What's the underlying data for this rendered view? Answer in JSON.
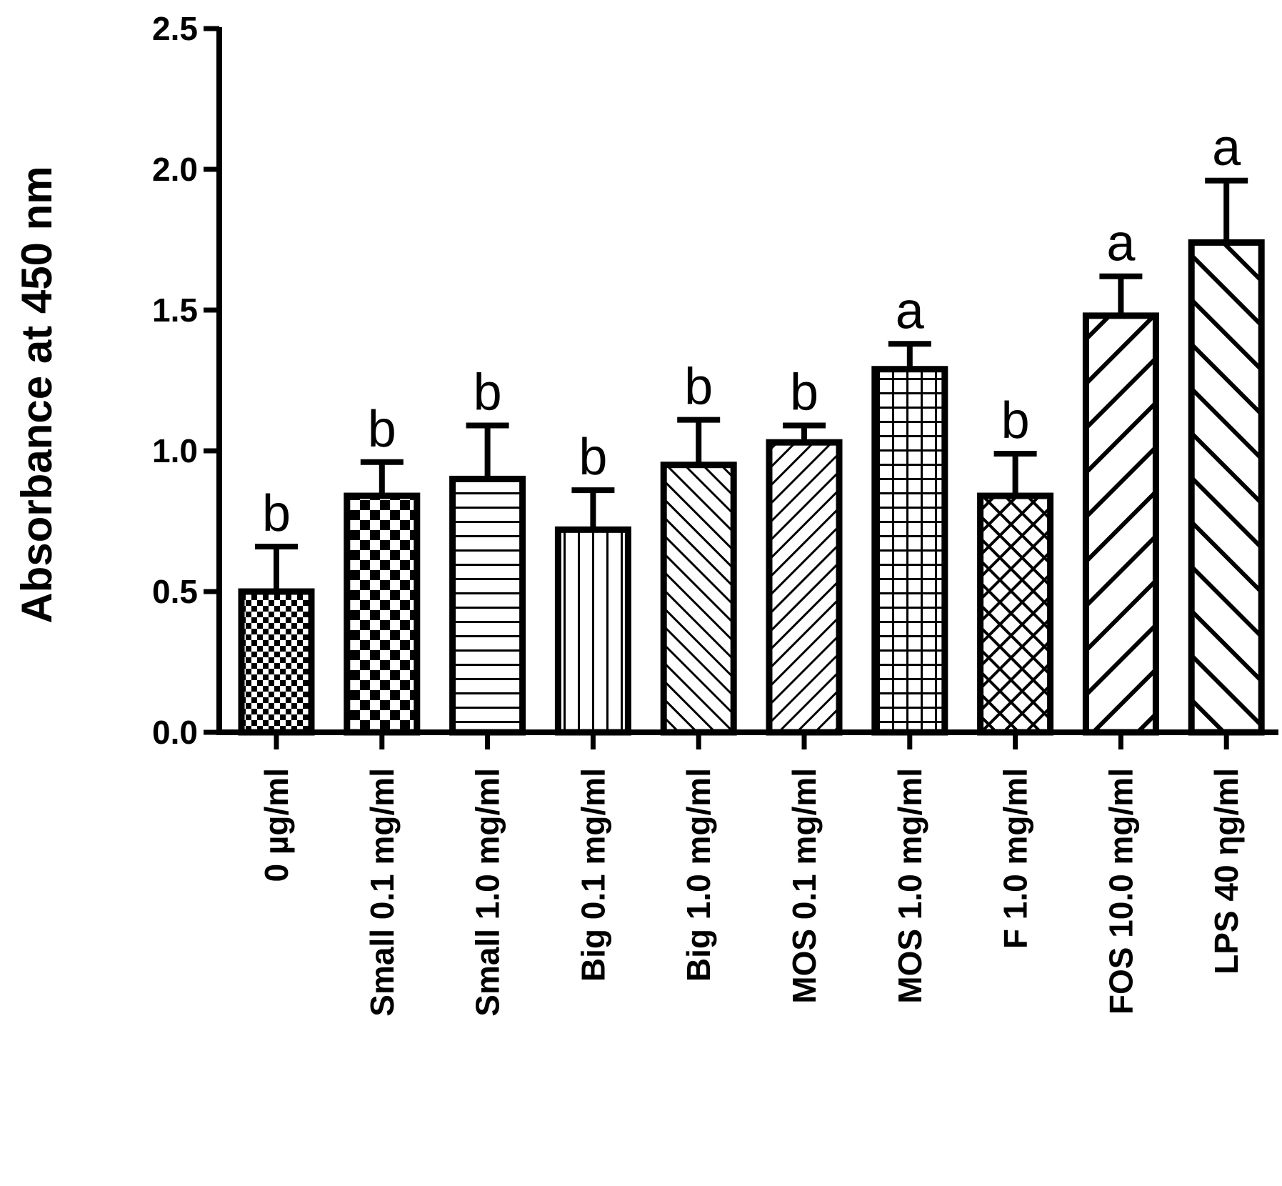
{
  "chart_data": {
    "type": "bar",
    "title": "",
    "xlabel": "",
    "ylabel": "Absorbance at 450 nm",
    "ylim": [
      0,
      2.5
    ],
    "yticks": [
      "0.0",
      "0.5",
      "1.0",
      "1.5",
      "2.0",
      "2.5"
    ],
    "grid": false,
    "categories": [
      "0 µg/ml",
      "Small 0.1 mg/ml",
      "Small 1.0 mg/ml",
      "Big 0.1 mg/ml",
      "Big 1.0 mg/ml",
      "MOS 0.1 mg/ml",
      "MOS 1.0 mg/ml",
      "F 1.0 mg/ml",
      "FOS 10.0 mg/ml",
      "LPS 40 ηg/ml"
    ],
    "values": [
      0.5,
      0.84,
      0.9,
      0.72,
      0.95,
      1.03,
      1.29,
      0.84,
      1.48,
      1.74
    ],
    "errors": [
      0.16,
      0.12,
      0.19,
      0.14,
      0.16,
      0.06,
      0.09,
      0.15,
      0.14,
      0.22
    ],
    "significance": [
      "b",
      "b",
      "b",
      "b",
      "b",
      "b",
      "a",
      "b",
      "a",
      "a"
    ],
    "patterns": [
      "fine-checker",
      "coarse-checker",
      "horizontal-lines",
      "vertical-lines",
      "diagonal-up-fine",
      "diagonal-down-fine",
      "grid",
      "crosshatch",
      "diagonal-down-wide",
      "diagonal-up-wide"
    ]
  }
}
